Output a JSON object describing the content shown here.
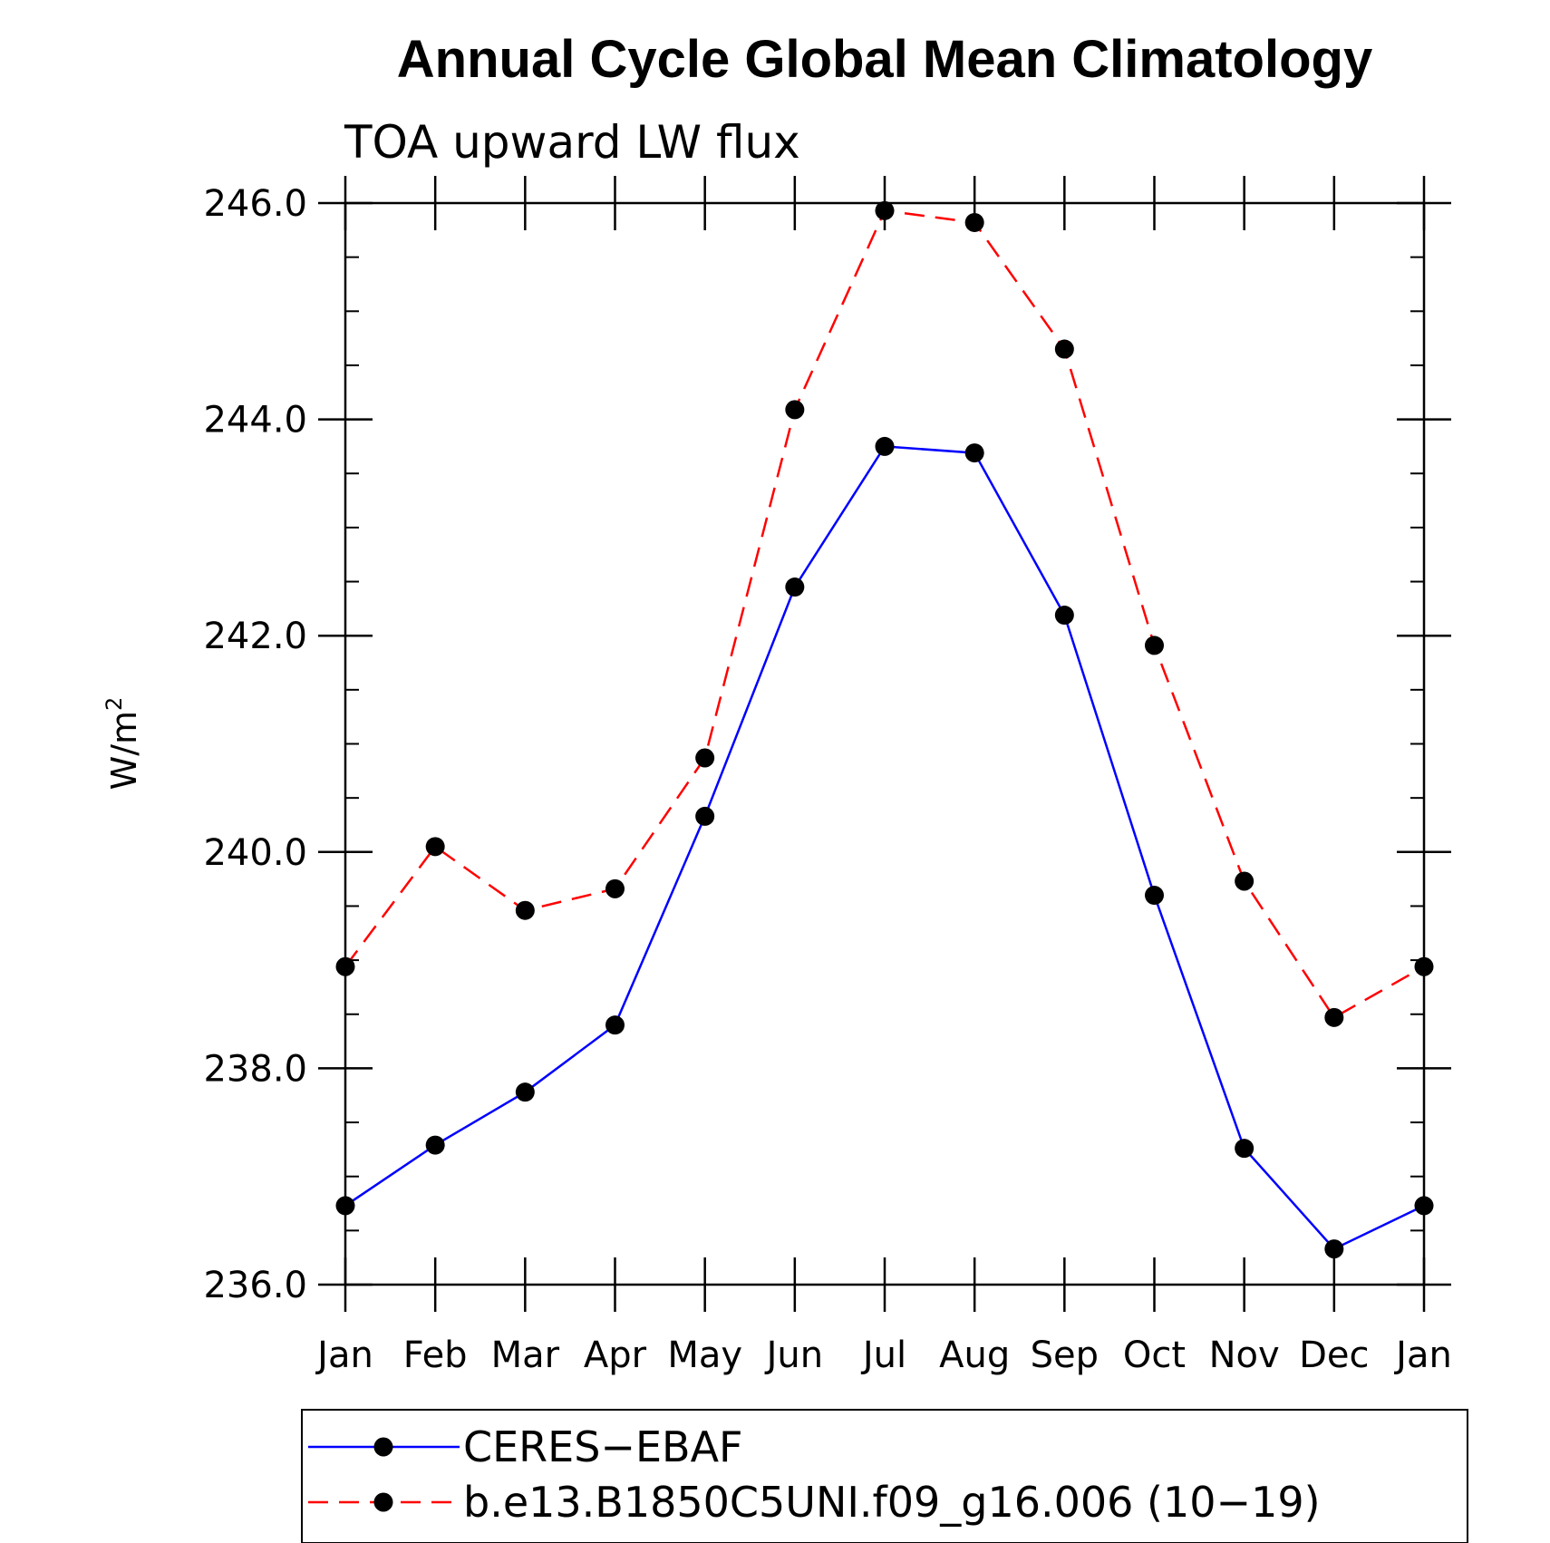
{
  "chart_data": {
    "type": "line",
    "title": "Annual Cycle Global Mean Climatology",
    "subtitle": "TOA upward LW flux",
    "ylabel": "W/m",
    "ylabel_superscript": "2",
    "xlabel": "",
    "categories": [
      "Jan",
      "Feb",
      "Mar",
      "Apr",
      "May",
      "Jun",
      "Jul",
      "Aug",
      "Sep",
      "Oct",
      "Nov",
      "Dec",
      "Jan"
    ],
    "ylim": [
      236.0,
      246.0
    ],
    "yticks": [
      "236.0",
      "238.0",
      "240.0",
      "242.0",
      "244.0",
      "246.0"
    ],
    "grid": false,
    "legend_position": "bottom",
    "series": [
      {
        "name": "CERES−EBAF",
        "color": "#0000ff",
        "dash": "solid",
        "marker": "filled-circle",
        "values": [
          236.73,
          237.29,
          237.78,
          238.4,
          240.33,
          242.45,
          243.75,
          243.69,
          242.19,
          239.6,
          237.26,
          236.33,
          236.73
        ]
      },
      {
        "name": "b.e13.B1850C5UNI.f09_g16.006 (10−19)",
        "color": "#ff0000",
        "dash": "dashed",
        "marker": "filled-circle",
        "values": [
          238.94,
          240.05,
          239.46,
          239.66,
          240.87,
          244.09,
          245.93,
          245.82,
          244.65,
          241.91,
          239.73,
          238.47,
          238.94
        ]
      }
    ]
  }
}
